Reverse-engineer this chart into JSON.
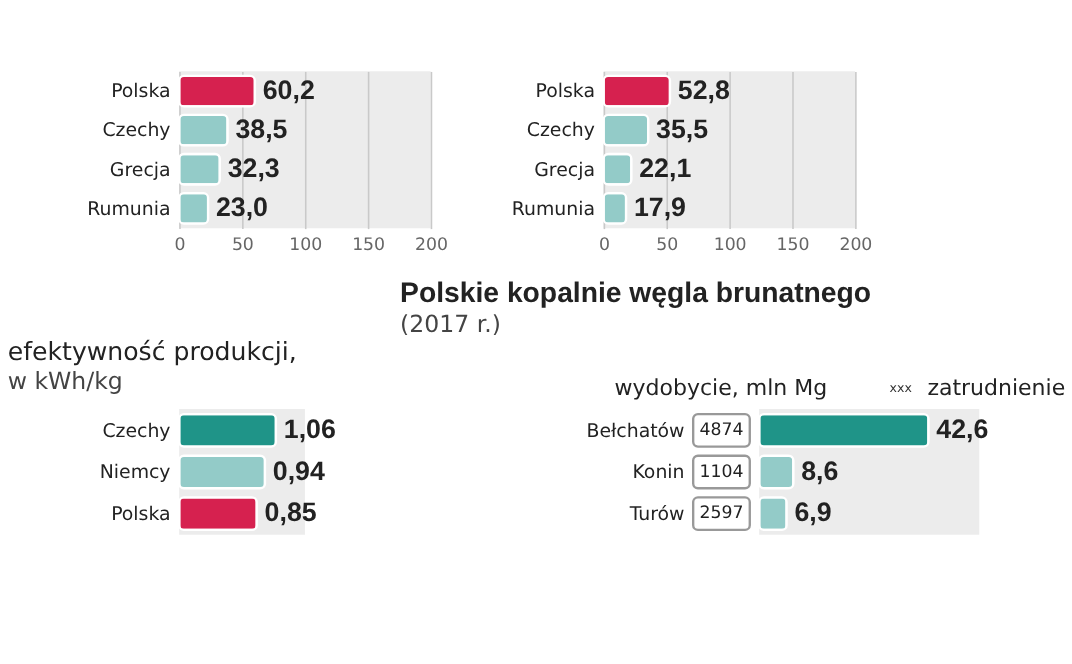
{
  "chart_data": [
    {
      "type": "bar",
      "orientation": "horizontal",
      "categories": [
        "Polska",
        "Czechy",
        "Grecja",
        "Rumunia"
      ],
      "values": [
        60.2,
        38.5,
        32.3,
        23.0
      ],
      "value_labels": [
        "60,2",
        "38,5",
        "32,3",
        "23,0"
      ],
      "colors": [
        "#d6214f",
        "#93cbc8",
        "#93cbc8",
        "#93cbc8"
      ],
      "xlim": [
        0,
        200
      ],
      "xticks": [
        0,
        50,
        100,
        150,
        200
      ],
      "grid": "x"
    },
    {
      "type": "bar",
      "orientation": "horizontal",
      "categories": [
        "Polska",
        "Czechy",
        "Grecja",
        "Rumunia"
      ],
      "values": [
        52.8,
        35.5,
        22.1,
        17.9
      ],
      "value_labels": [
        "52,8",
        "35,5",
        "22,1",
        "17,9"
      ],
      "colors": [
        "#d6214f",
        "#93cbc8",
        "#93cbc8",
        "#93cbc8"
      ],
      "xlim": [
        0,
        200
      ],
      "xticks": [
        0,
        50,
        100,
        150,
        200
      ],
      "grid": "x"
    },
    {
      "type": "bar",
      "orientation": "horizontal",
      "title": "efektywność produkcji,",
      "subtitle": "w kWh/kg",
      "categories": [
        "Czechy",
        "Niemcy",
        "Polska"
      ],
      "values": [
        1.06,
        0.94,
        0.85
      ],
      "value_labels": [
        "1,06",
        "0,94",
        "0,85"
      ],
      "colors": [
        "#1f9488",
        "#93cbc8",
        "#d6214f"
      ],
      "tick_labels": "y"
    },
    {
      "type": "bar",
      "orientation": "horizontal",
      "title": "Polskie kopalnie węgla brunatnego",
      "subtitle": "(2017 r.)",
      "categories": [
        "Bełchatów",
        "Konin",
        "Turów"
      ],
      "series": [
        {
          "name": "wydobycie, mln Mg",
          "colors": [
            "#1f9488",
            "#93cbc8",
            "#93cbc8"
          ],
          "values": [
            42.6,
            8.6,
            6.9
          ],
          "value_labels": [
            "42,6",
            "8,6",
            "6,9"
          ]
        }
      ],
      "legend": "top",
      "annotations": [
        "xxx",
        "zatrudnienie",
        "4874",
        "1104",
        "2597"
      ],
      "tick_labels": "y"
    }
  ]
}
